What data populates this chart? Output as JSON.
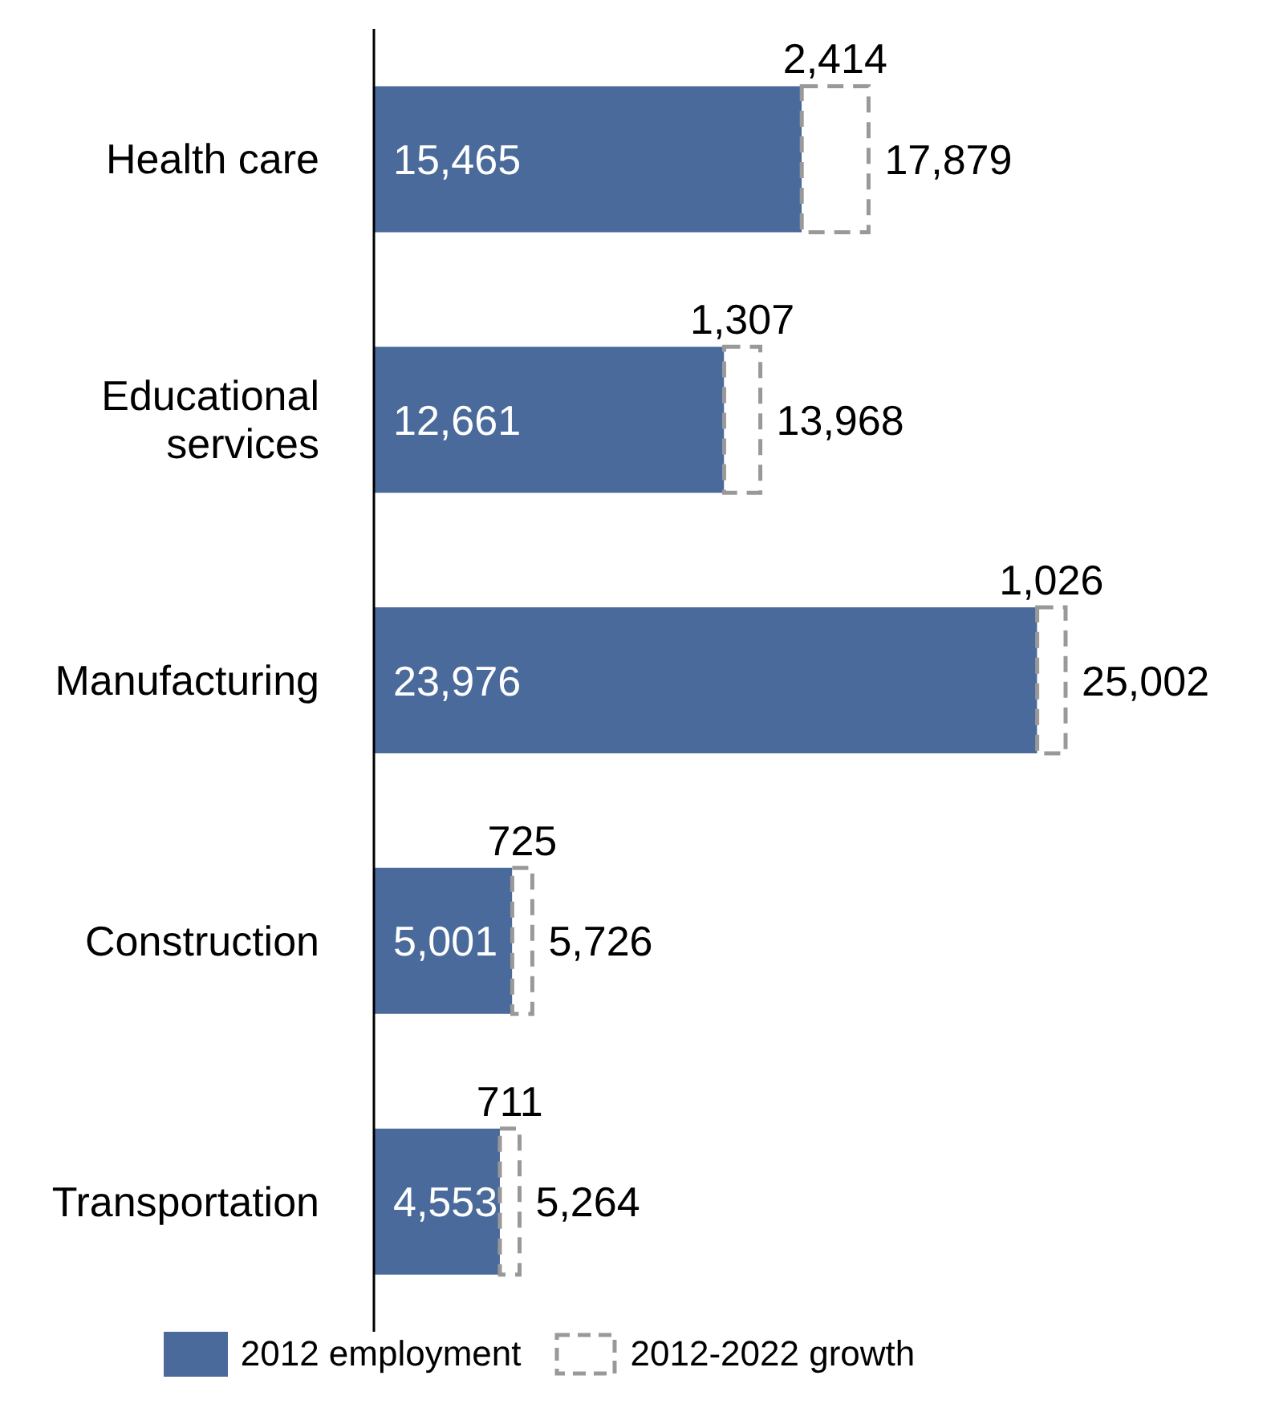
{
  "chart_data": {
    "type": "bar",
    "orientation": "horizontal",
    "stacked": true,
    "categories": [
      "Health care",
      "Educational services",
      "Manufacturing",
      "Construction",
      "Transportation"
    ],
    "series": [
      {
        "name": "2012 employment",
        "color": "#4a6a9b",
        "values": [
          15465,
          12661,
          23976,
          5001,
          4553
        ],
        "value_labels": [
          "15,465",
          "12,661",
          "23,976",
          "5,001",
          "4,553"
        ]
      },
      {
        "name": "2012-2022 growth",
        "color": "#999999",
        "values": [
          2414,
          1307,
          1026,
          725,
          711
        ],
        "line_style": "dashed",
        "value_labels": [
          "2,414",
          "1,307",
          "1,026",
          "725",
          "711"
        ]
      }
    ],
    "totals": [
      "17,879",
      "13,968",
      "25,002",
      "5,726",
      "5,264"
    ],
    "legend": "bottom",
    "tick_labels": "y"
  }
}
